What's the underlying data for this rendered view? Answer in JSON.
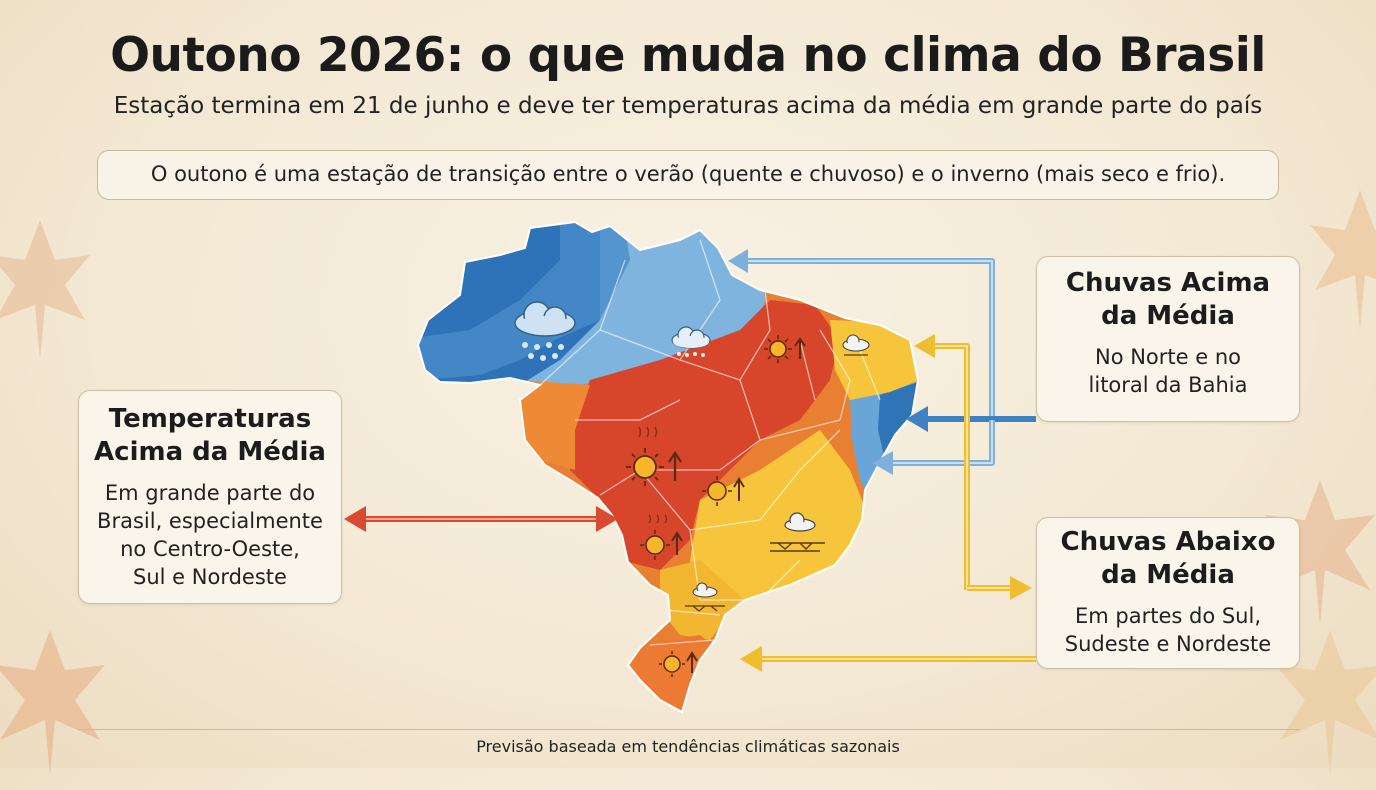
{
  "title": "Outono 2026: o que muda no clima do Brasil",
  "subtitle": "Estação termina em 21 de junho e deve ter temperaturas acima da média em grande parte do país",
  "intro": "O outono é uma estação de transição entre o verão (quente e chuvoso) e o inverno (mais seco e frio).",
  "cards": {
    "temperature": {
      "title_line1": "Temperaturas",
      "title_line2": "Acima da Média",
      "text_lines": [
        "Em grande parte do",
        "Brasil, especialmente",
        "no Centro-Oeste,",
        "Sul e Nordeste"
      ]
    },
    "rain_above": {
      "title_line1": "Chuvas Acima",
      "title_line2": "da Média",
      "text_lines": [
        "No Norte e no",
        "litoral da Bahia"
      ]
    },
    "rain_below": {
      "title_line1": "Chuvas Abaixo",
      "title_line2": "da Média",
      "text_lines": [
        "Em partes do Sul,",
        "Sudeste e Nordeste"
      ]
    }
  },
  "footer": "Previsão baseada em tendências climáticas sazonais",
  "colors": {
    "rain_above": "#2f74b6",
    "rain_light": "#8bbde2",
    "temp_hot": "#d9452b",
    "temp_warm": "#ee7a2e",
    "rain_below": "#f5c43a",
    "arrow_blue": "#7fb0dc",
    "arrow_yellow": "#f0bd2e",
    "arrow_red": "#d94a30"
  },
  "icons": [
    "rain-cloud-icon",
    "sun-up-arrow-icon",
    "dry-cloud-icon",
    "autumn-leaf-icon"
  ]
}
